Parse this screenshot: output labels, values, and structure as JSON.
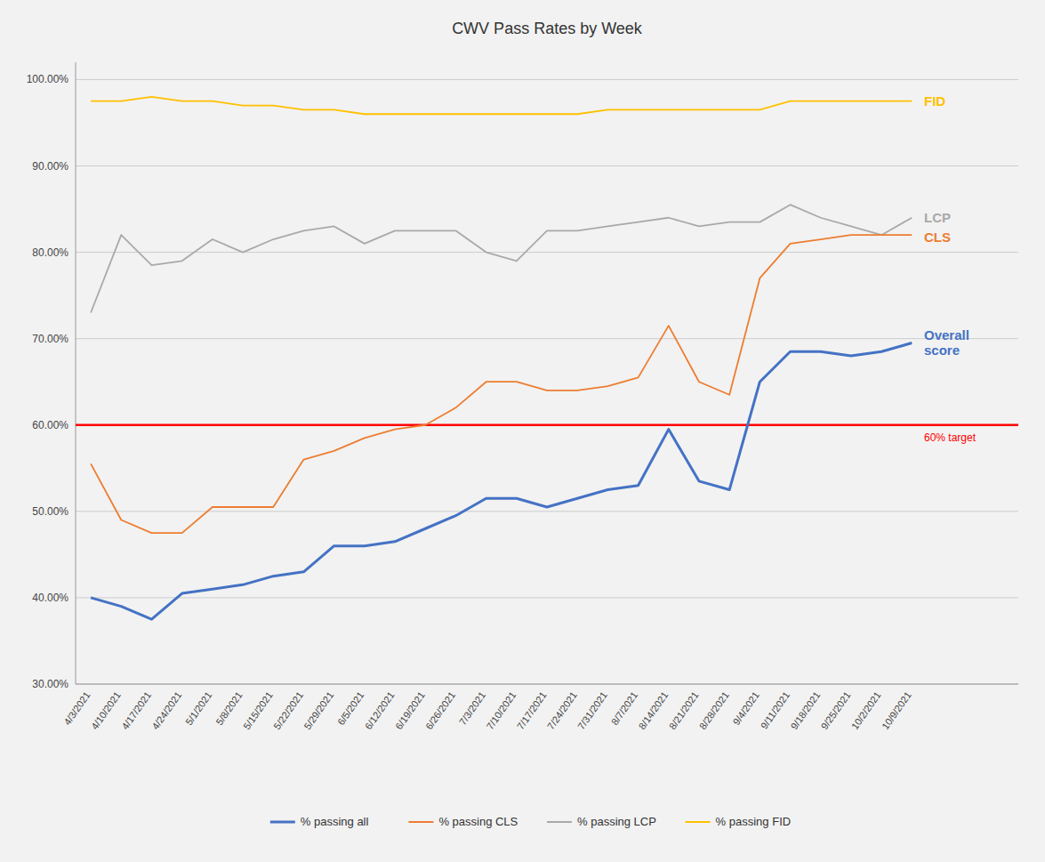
{
  "chart_data": {
    "type": "line",
    "title": "CWV Pass Rates by Week",
    "categories": [
      "4/3/2021",
      "4/10/2021",
      "4/17/2021",
      "4/24/2021",
      "5/1/2021",
      "5/8/2021",
      "5/15/2021",
      "5/22/2021",
      "5/29/2021",
      "6/5/2021",
      "6/12/2021",
      "6/19/2021",
      "6/26/2021",
      "7/3/2021",
      "7/10/2021",
      "7/17/2021",
      "7/24/2021",
      "7/31/2021",
      "8/7/2021",
      "8/14/2021",
      "8/21/2021",
      "8/28/2021",
      "9/4/2021",
      "9/11/2021",
      "9/18/2021",
      "9/25/2021",
      "10/2/2021",
      "10/9/2021"
    ],
    "series": [
      {
        "name": "% passing all",
        "label": "Overall\nscore",
        "color": "#4472C4",
        "values": [
          40.0,
          39.0,
          37.5,
          40.5,
          41.0,
          41.5,
          42.5,
          43.0,
          46.0,
          46.0,
          46.5,
          48.0,
          49.5,
          51.5,
          51.5,
          50.5,
          51.5,
          52.5,
          53.0,
          59.5,
          53.5,
          52.5,
          65.0,
          68.5,
          68.5,
          68.0,
          68.5,
          69.5
        ]
      },
      {
        "name": "% passing CLS",
        "label": "CLS",
        "color": "#ED7D31",
        "values": [
          55.5,
          49.0,
          47.5,
          47.5,
          50.5,
          50.5,
          50.5,
          56.0,
          57.0,
          58.5,
          59.5,
          60.0,
          62.0,
          65.0,
          65.0,
          64.0,
          64.0,
          64.5,
          65.5,
          71.5,
          65.0,
          63.5,
          77.0,
          81.0,
          81.5,
          82.0,
          82.0,
          82.0
        ]
      },
      {
        "name": "% passing LCP",
        "label": "LCP",
        "color": "#A9A9A9",
        "values": [
          73.0,
          82.0,
          78.5,
          79.0,
          81.5,
          80.0,
          81.5,
          82.5,
          83.0,
          81.0,
          82.5,
          82.5,
          82.5,
          80.0,
          79.0,
          82.5,
          82.5,
          83.0,
          83.5,
          84.0,
          83.0,
          83.5,
          83.5,
          85.5,
          84.0,
          83.0,
          82.0,
          84.0
        ]
      },
      {
        "name": "% passing FID",
        "label": "FID",
        "color": "#FFC000",
        "values": [
          97.5,
          97.5,
          98.0,
          97.5,
          97.5,
          97.0,
          97.0,
          96.5,
          96.5,
          96.0,
          96.0,
          96.0,
          96.0,
          96.0,
          96.0,
          96.0,
          96.0,
          96.5,
          96.5,
          96.5,
          96.5,
          96.5,
          96.5,
          97.5,
          97.5,
          97.5,
          97.5,
          97.5
        ]
      }
    ],
    "reference_lines": [
      {
        "value": 60.0,
        "label": "60% target",
        "color": "#FF0000"
      }
    ],
    "ylim": [
      30.0,
      102.0
    ],
    "yticks": [
      {
        "value": 30.0,
        "label": "30.00%"
      },
      {
        "value": 40.0,
        "label": "40.00%"
      },
      {
        "value": 50.0,
        "label": "50.00%"
      },
      {
        "value": 60.0,
        "label": "60.00%"
      },
      {
        "value": 70.0,
        "label": "70.00%"
      },
      {
        "value": 80.0,
        "label": "80.00%"
      },
      {
        "value": 90.0,
        "label": "90.00%"
      },
      {
        "value": 100.0,
        "label": "100.00%"
      }
    ],
    "grid": true,
    "legend": "bottom"
  }
}
